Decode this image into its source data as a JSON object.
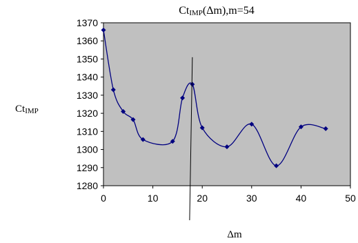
{
  "chart_data": {
    "type": "line",
    "title_main": "Ct",
    "title_sub": "IMP",
    "title_rest": "(Δm),m=54",
    "ylabel_main": "Ct",
    "ylabel_sub": "IMP",
    "xlabel": "Δm",
    "xlim": [
      0,
      50
    ],
    "ylim": [
      1280,
      1370
    ],
    "x_ticks": [
      0,
      10,
      20,
      30,
      40,
      50
    ],
    "y_ticks": [
      1280,
      1290,
      1300,
      1310,
      1320,
      1330,
      1340,
      1350,
      1360,
      1370
    ],
    "grid": false,
    "legend": "none",
    "plot_background": "#c0c0c0",
    "series_color": "#000080",
    "reference_line_x": 18,
    "series": [
      {
        "x": [
          0,
          2,
          4,
          6,
          8,
          14,
          16,
          18,
          20,
          25,
          30,
          35,
          40,
          45
        ],
        "values": [
          1366,
          1333,
          1321,
          1316.5,
          1305.5,
          1304.5,
          1328.5,
          1336,
          1312,
          1301.5,
          1314,
          1291,
          1312.5,
          1311.5
        ]
      }
    ]
  }
}
